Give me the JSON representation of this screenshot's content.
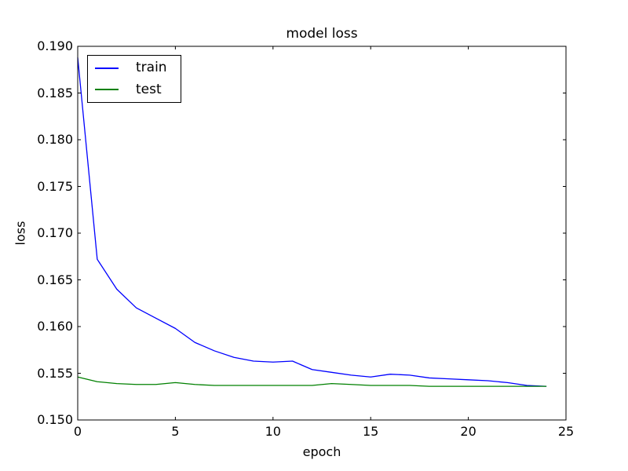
{
  "figure": {
    "background": "#ffffff",
    "title": "model loss",
    "xlabel": "epoch",
    "ylabel": "loss"
  },
  "legend": {
    "position": "upper left",
    "entries": [
      {
        "label": "train",
        "color": "#0000ff"
      },
      {
        "label": "test",
        "color": "#008000"
      }
    ]
  },
  "chart_data": {
    "type": "line",
    "title": "model loss",
    "xlabel": "epoch",
    "ylabel": "loss",
    "xlim": [
      0,
      25
    ],
    "ylim": [
      0.15,
      0.19
    ],
    "xticks": [
      0,
      5,
      10,
      15,
      20,
      25
    ],
    "xtick_labels": [
      "0",
      "5",
      "10",
      "15",
      "20",
      "25"
    ],
    "yticks": [
      0.15,
      0.155,
      0.16,
      0.165,
      0.17,
      0.175,
      0.18,
      0.185,
      0.19
    ],
    "ytick_labels": [
      "0.150",
      "0.155",
      "0.160",
      "0.165",
      "0.170",
      "0.175",
      "0.180",
      "0.185",
      "0.190"
    ],
    "grid": false,
    "legend_position": "upper left",
    "x": [
      0,
      1,
      2,
      3,
      4,
      5,
      6,
      7,
      8,
      9,
      10,
      11,
      12,
      13,
      14,
      15,
      16,
      17,
      18,
      19,
      20,
      21,
      22,
      23,
      24
    ],
    "series": [
      {
        "name": "train",
        "color": "#0000ff",
        "values": [
          0.1888,
          0.1672,
          0.164,
          0.162,
          0.1609,
          0.1598,
          0.1583,
          0.1574,
          0.1567,
          0.1563,
          0.1562,
          0.1563,
          0.1554,
          0.1551,
          0.1548,
          0.1546,
          0.1549,
          0.1548,
          0.1545,
          0.1544,
          0.1543,
          0.1542,
          0.154,
          0.1537,
          0.1536
        ]
      },
      {
        "name": "test",
        "color": "#008000",
        "values": [
          0.1546,
          0.1541,
          0.1539,
          0.1538,
          0.1538,
          0.154,
          0.1538,
          0.1537,
          0.1537,
          0.1537,
          0.1537,
          0.1537,
          0.1537,
          0.1539,
          0.1538,
          0.1537,
          0.1537,
          0.1537,
          0.1536,
          0.1536,
          0.1536,
          0.1536,
          0.1536,
          0.1536,
          0.1536
        ]
      }
    ]
  }
}
